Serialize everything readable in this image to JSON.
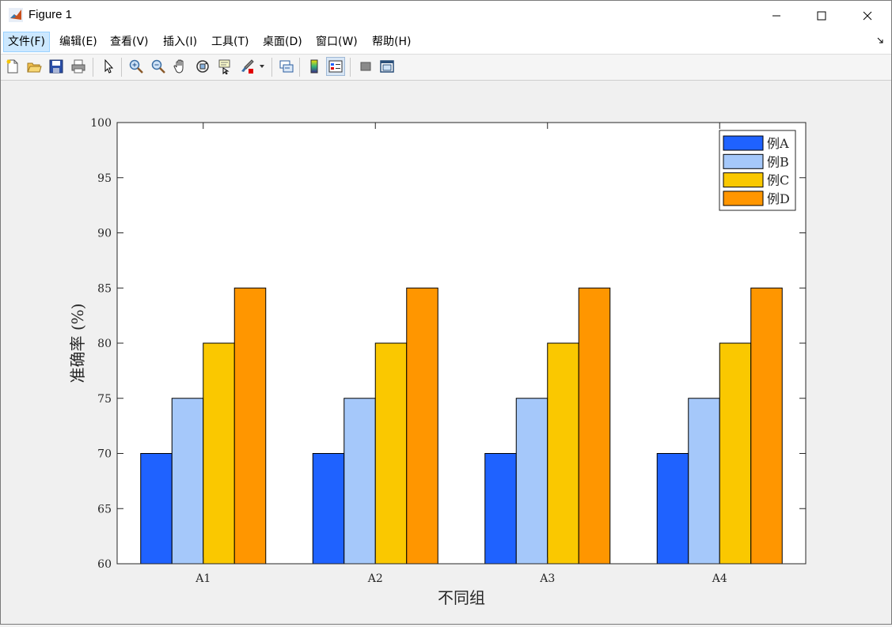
{
  "window": {
    "title": "Figure 1"
  },
  "menu": [
    {
      "label": "文件(F)"
    },
    {
      "label": "编辑(E)"
    },
    {
      "label": "查看(V)"
    },
    {
      "label": "插入(I)"
    },
    {
      "label": "工具(T)"
    },
    {
      "label": "桌面(D)"
    },
    {
      "label": "窗口(W)"
    },
    {
      "label": "帮助(H)"
    }
  ],
  "toolbar_icons": [
    "new-figure-icon",
    "open-file-icon",
    "save-icon",
    "print-icon",
    "edit-plot-icon",
    "zoom-in-icon",
    "zoom-out-icon",
    "pan-icon",
    "rotate-3d-icon",
    "data-cursor-icon",
    "brush-icon",
    "link-plot-icon",
    "insert-colorbar-icon",
    "insert-legend-icon",
    "hide-plot-tools-icon",
    "show-plot-tools-icon"
  ],
  "colors": {
    "A": "#1f62ff",
    "B": "#a5c8fa",
    "C": "#fac800",
    "D": "#ff9600"
  },
  "chart_data": {
    "type": "bar",
    "categories": [
      "A1",
      "A2",
      "A3",
      "A4"
    ],
    "series": [
      {
        "name": "例A",
        "values": [
          70,
          70,
          70,
          70
        ]
      },
      {
        "name": "例B",
        "values": [
          75,
          75,
          75,
          75
        ]
      },
      {
        "name": "例C",
        "values": [
          80,
          80,
          80,
          80
        ]
      },
      {
        "name": "例D",
        "values": [
          85,
          85,
          85,
          85
        ]
      }
    ],
    "xlabel": "不同组",
    "ylabel": "准确率 (%)",
    "ylim": [
      60,
      100
    ],
    "yticks": [
      "60",
      "65",
      "70",
      "75",
      "80",
      "85",
      "90",
      "95",
      "100"
    ],
    "grid": false,
    "legend": "top-right"
  }
}
